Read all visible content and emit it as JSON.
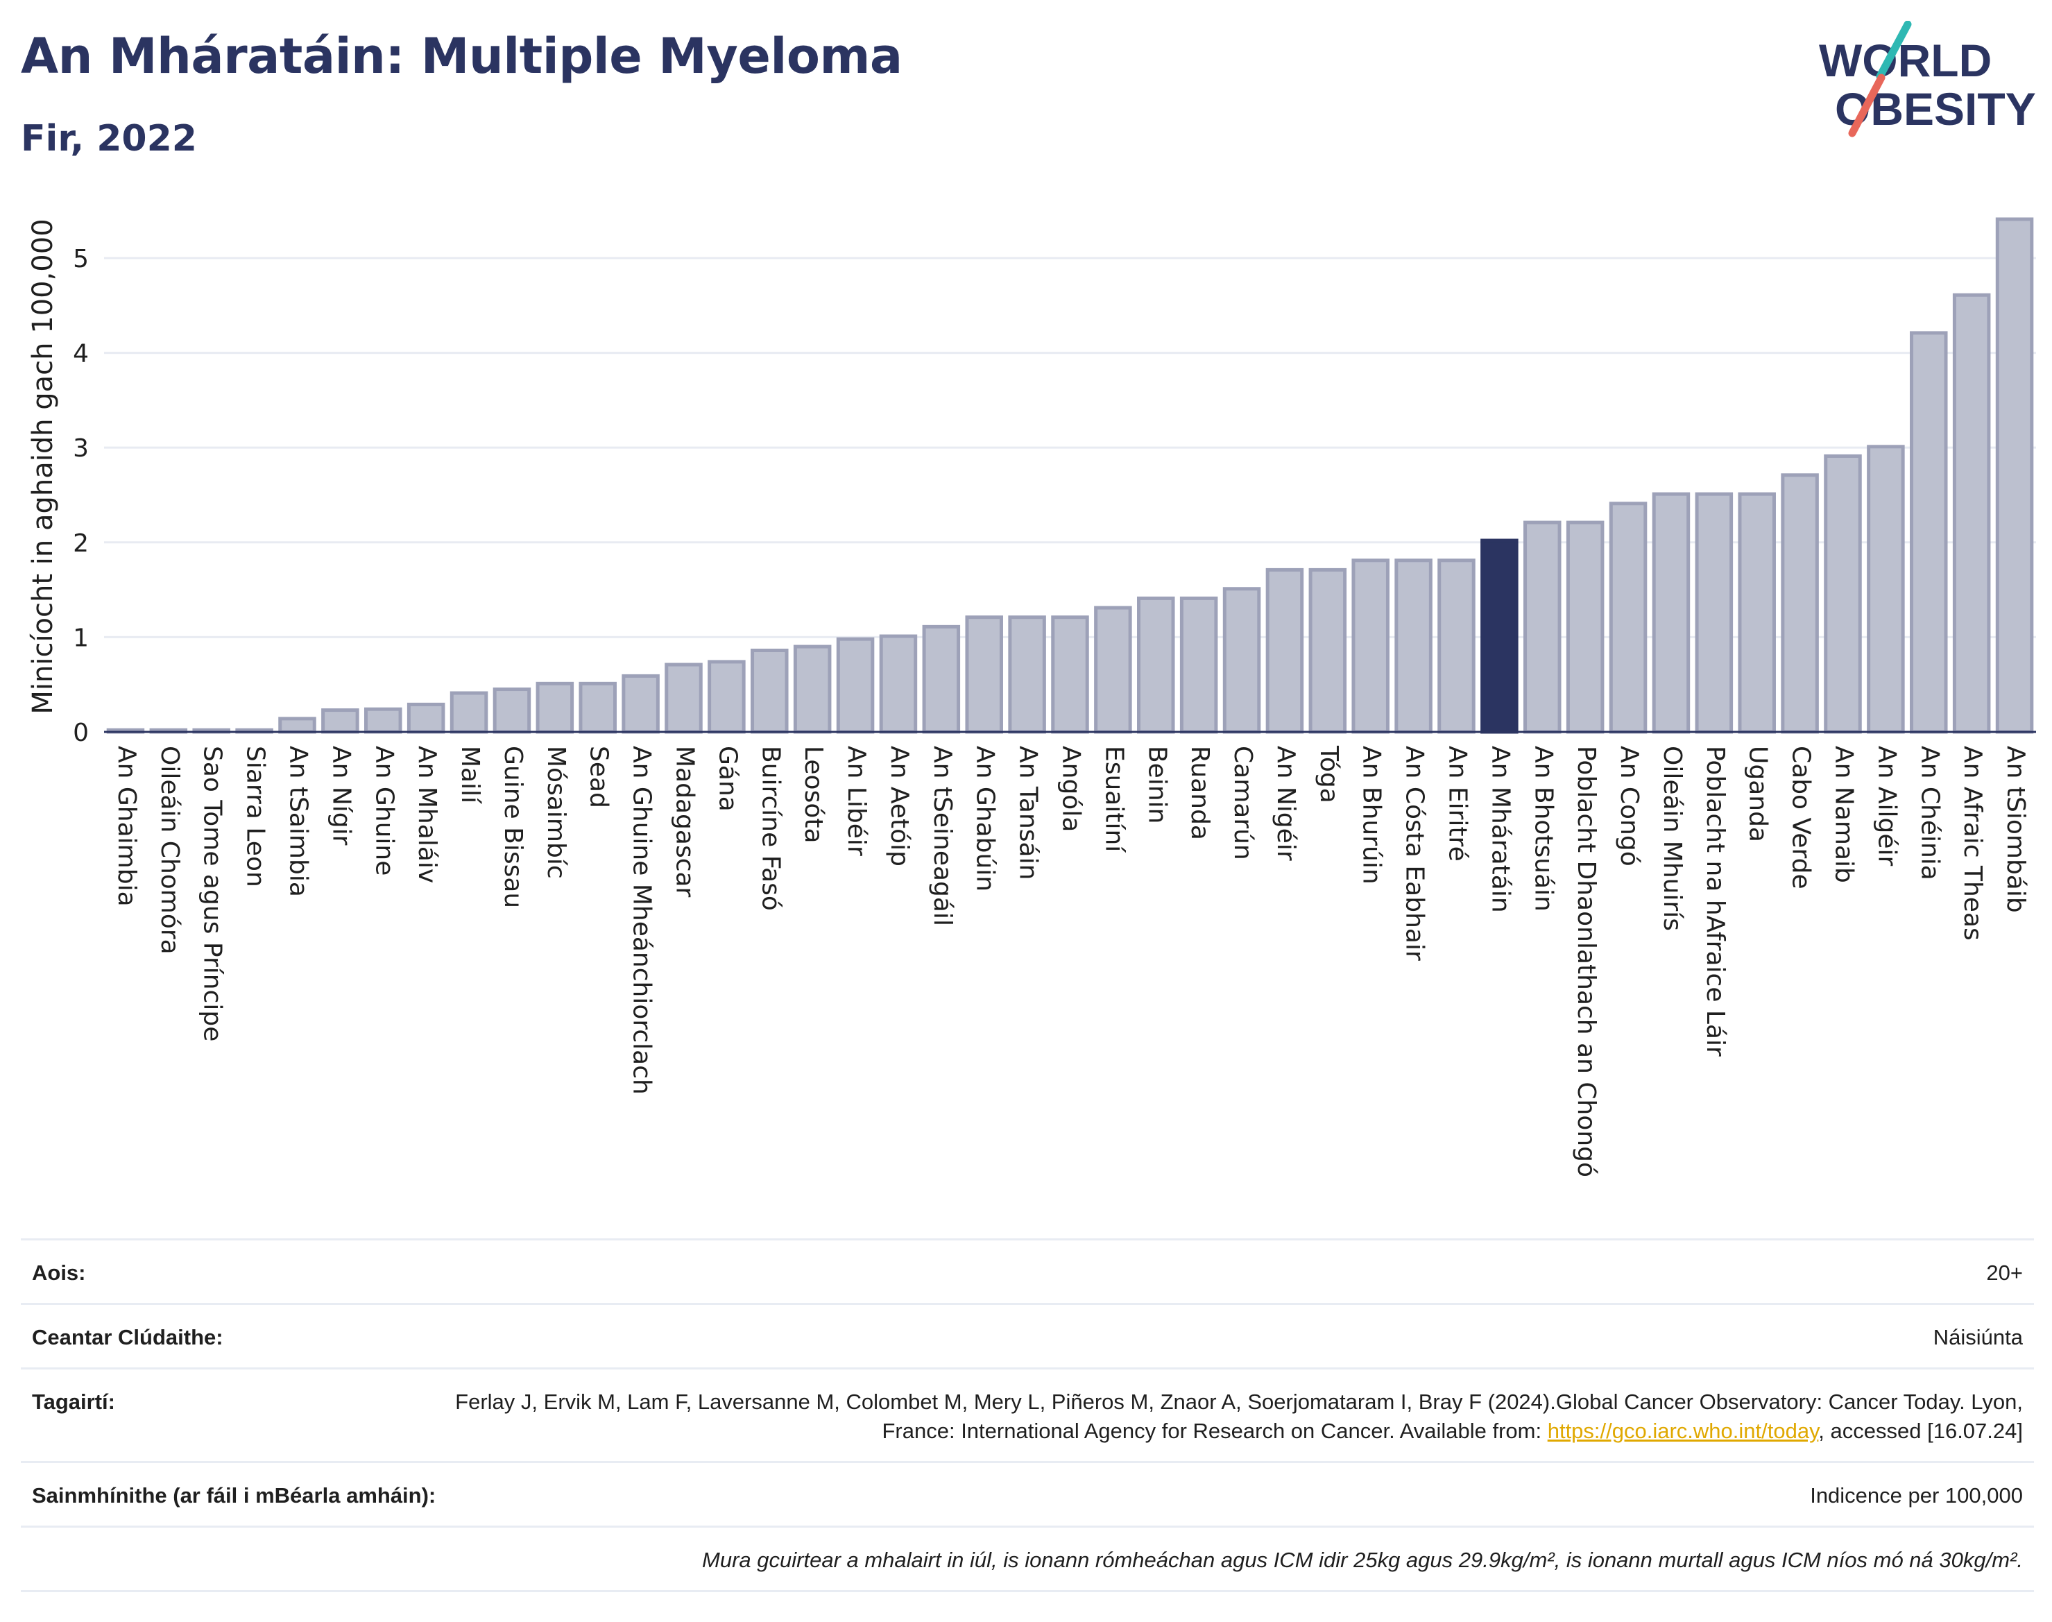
{
  "header": {
    "title": "An Mháratáin: Multiple Myeloma",
    "subtitle": "Fir, 2022"
  },
  "logo": {
    "line1": "WORLD",
    "line2": "OBESITY"
  },
  "colors": {
    "highlight": "#2b3461",
    "bar": "#bcc0cf",
    "bar_edge": "#9da1b8",
    "title": "#2b3461"
  },
  "chart_data": {
    "type": "bar",
    "ylabel": "Minicíocht in aghaidh gach 100,000",
    "ylim": [
      0,
      5.6
    ],
    "yticks": [
      0,
      1,
      2,
      3,
      4,
      5
    ],
    "grid": true,
    "highlight": "An Mháratáin",
    "categories": [
      "An Ghaimbia",
      "Oileáin Chomóra",
      "Sao Tome agus Príncipe",
      "Siarra Leon",
      "An tSaimbia",
      "An Nígir",
      "An Ghuine",
      "An Mhaláiv",
      "Mailí",
      "Guine Bissau",
      "Mósaimbíc",
      "Sead",
      "An Ghuine Mheánchiorclach",
      "Madagascar",
      "Gána",
      "Buircíne Fasó",
      "Leosóta",
      "An Libéir",
      "An Aetóip",
      "An tSeineagáil",
      "An Ghabúin",
      "An Tansáin",
      "Angóla",
      "Esuaitíní",
      "Beinin",
      "Ruanda",
      "Camarún",
      "An Nigéir",
      "Tóga",
      "An Bhurúin",
      "An Cósta Eabhair",
      "An Eiritré",
      "An Mháratáin",
      "An Bhotsuáin",
      "Poblacht Dhaonlathach an Chongó",
      "An Congó",
      "Oileáin Mhuirís",
      "Poblacht na hAfraice Láir",
      "Uganda",
      "Cabo Verde",
      "An Namaib",
      "An Ailgéir",
      "An Chéinia",
      "An Afraic Theas",
      "An tSiombáib"
    ],
    "values": [
      0.02,
      0.02,
      0.02,
      0.02,
      0.14,
      0.23,
      0.24,
      0.29,
      0.41,
      0.45,
      0.51,
      0.51,
      0.59,
      0.71,
      0.74,
      0.86,
      0.9,
      0.98,
      1.01,
      1.11,
      1.21,
      1.21,
      1.21,
      1.31,
      1.41,
      1.41,
      1.51,
      1.71,
      1.71,
      1.81,
      1.81,
      1.81,
      2.02,
      2.21,
      2.21,
      2.41,
      2.51,
      2.51,
      2.51,
      2.71,
      2.91,
      3.01,
      4.21,
      4.61,
      5.41
    ]
  },
  "info": {
    "age_label": "Aois:",
    "age_value": "20+",
    "area_label": "Ceantar Clúdaithe:",
    "area_value": "Náisiúnta",
    "refs_label": "Tagairtí:",
    "refs_text1": "Ferlay J, Ervik M, Lam F, Laversanne M, Colombet M, Mery L, Piñeros M, Znaor A, Soerjomataram I, Bray F (2024).Global Cancer Observatory: Cancer Today. Lyon, France: International Agency for Research on Cancer. Available from: ",
    "refs_link": "https://gco.iarc.who.int/today",
    "refs_text2": ", accessed [16.07.24]",
    "defs_label": "Sainmhínithe (ar fáil i mBéarla amháin):",
    "defs_value": "Indicence per 100,000",
    "note": "Mura gcuirtear a mhalairt in iúl, is ionann rómheáchan agus ICM idir 25kg agus 29.9kg/m², is ionann murtall agus ICM níos mó ná 30kg/m²."
  }
}
